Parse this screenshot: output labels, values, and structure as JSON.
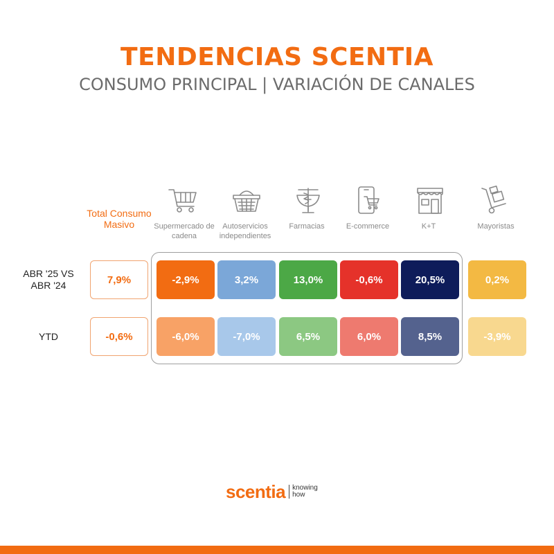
{
  "header": {
    "title": "TENDENCIAS SCENTIA",
    "subtitle": "CONSUMO PRINCIPAL | VARIACIÓN DE CANALES"
  },
  "total_column_label": "Total Consumo Masivo",
  "columns": [
    {
      "label": "Supermercado de cadena",
      "icon": "shopping-cart-icon"
    },
    {
      "label": "Autoservicios independientes",
      "icon": "shopping-basket-icon"
    },
    {
      "label": "Farmacias",
      "icon": "pharmacy-icon"
    },
    {
      "label": "E-commerce",
      "icon": "mobile-cart-icon"
    },
    {
      "label": "K+T",
      "icon": "storefront-icon"
    },
    {
      "label": "Mayoristas",
      "icon": "hand-truck-icon"
    }
  ],
  "rows": [
    {
      "label": "ABR '25 VS ABR '24",
      "total": "7,9%",
      "values": [
        "-2,9%",
        "3,2%",
        "13,0%",
        "-0,6%",
        "20,5%",
        "0,2%"
      ]
    },
    {
      "label": "YTD",
      "total": "-0,6%",
      "values": [
        "-6,0%",
        "-7,0%",
        "6,5%",
        "6,0%",
        "8,5%",
        "-3,9%"
      ]
    }
  ],
  "colors": {
    "accent": "#f26c12",
    "row1": [
      "#f26c12",
      "#7ba7d8",
      "#4ca846",
      "#e5322a",
      "#0e1c5a",
      "#f3b943"
    ],
    "row2": [
      "#f8a266",
      "#a8c8ea",
      "#8cc882",
      "#ee7a6f",
      "#54628e",
      "#f8d88f"
    ]
  },
  "chart_data": {
    "type": "table",
    "title": "TENDENCIAS SCENTIA",
    "subtitle": "CONSUMO PRINCIPAL | VARIACIÓN DE CANALES",
    "categories": [
      "Total Consumo Masivo",
      "Supermercado de cadena",
      "Autoservicios independientes",
      "Farmacias",
      "E-commerce",
      "K+T",
      "Mayoristas"
    ],
    "series": [
      {
        "name": "ABR '25 VS ABR '24",
        "values": [
          7.9,
          -2.9,
          3.2,
          13.0,
          -0.6,
          20.5,
          0.2
        ]
      },
      {
        "name": "YTD",
        "values": [
          -0.6,
          -6.0,
          -7.0,
          6.5,
          6.0,
          8.5,
          -3.9
        ]
      }
    ]
  },
  "logo": {
    "wordmark": "scentia",
    "tagline_1": "knowing",
    "tagline_2": "how"
  }
}
